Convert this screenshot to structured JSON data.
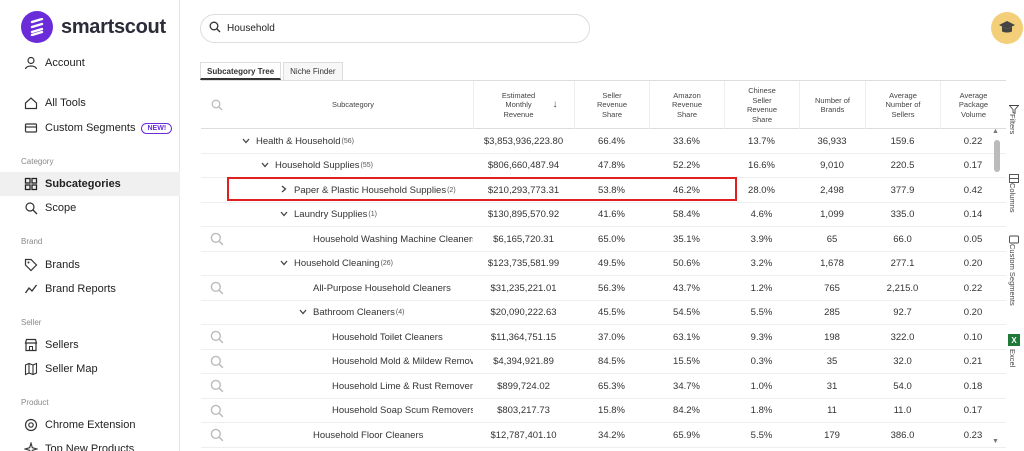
{
  "brand": {
    "name": "smartscout",
    "color": "#6a2bd9"
  },
  "sidebar": {
    "account": "Account",
    "all_tools": "All Tools",
    "custom_segments": "Custom Segments",
    "new_badge": "NEW!",
    "sections": {
      "category": "Category",
      "brand": "Brand",
      "seller": "Seller",
      "product": "Product"
    },
    "subcategories": "Subcategories",
    "scope": "Scope",
    "brands": "Brands",
    "brand_reports": "Brand Reports",
    "sellers": "Sellers",
    "seller_map": "Seller Map",
    "chrome_extension": "Chrome Extension",
    "top_new_products": "Top New Products"
  },
  "search": {
    "value": "Household"
  },
  "tabs": [
    "Subcategory Tree",
    "Niche Finder"
  ],
  "columns": {
    "subcategory": "Subcategory",
    "revenue": "Estimated Monthly Revenue",
    "seller_share": "Seller Revenue Share",
    "amazon_share": "Amazon Revenue Share",
    "chinese_share": "Chinese Seller Revenue Share",
    "brands": "Number of Brands",
    "avg_sellers": "Average Number of Sellers",
    "pkg_volume": "Average Package Volume"
  },
  "rows": [
    {
      "name": "Health & Household",
      "count": "(56)",
      "rev": "$3,853,936,223.80",
      "seller": "66.4%",
      "amazon": "33.6%",
      "chinese": "13.7%",
      "brands": "36,933",
      "sellers": "159.6",
      "vol": "0.22"
    },
    {
      "name": "Household Supplies",
      "count": "(55)",
      "rev": "$806,660,487.94",
      "seller": "47.8%",
      "amazon": "52.2%",
      "chinese": "16.6%",
      "brands": "9,010",
      "sellers": "220.5",
      "vol": "0.17"
    },
    {
      "name": "Paper & Plastic Household Supplies",
      "count": "(2)",
      "rev": "$210,293,773.31",
      "seller": "53.8%",
      "amazon": "46.2%",
      "chinese": "28.0%",
      "brands": "2,498",
      "sellers": "377.9",
      "vol": "0.42"
    },
    {
      "name": "Laundry Supplies",
      "count": "(1)",
      "rev": "$130,895,570.92",
      "seller": "41.6%",
      "amazon": "58.4%",
      "chinese": "4.6%",
      "brands": "1,099",
      "sellers": "335.0",
      "vol": "0.14"
    },
    {
      "name": "Household Washing Machine Cleaners",
      "count": "",
      "rev": "$6,165,720.31",
      "seller": "65.0%",
      "amazon": "35.1%",
      "chinese": "3.9%",
      "brands": "65",
      "sellers": "66.0",
      "vol": "0.05"
    },
    {
      "name": "Household Cleaning",
      "count": "(26)",
      "rev": "$123,735,581.99",
      "seller": "49.5%",
      "amazon": "50.6%",
      "chinese": "3.2%",
      "brands": "1,678",
      "sellers": "277.1",
      "vol": "0.20"
    },
    {
      "name": "All-Purpose Household Cleaners",
      "count": "",
      "rev": "$31,235,221.01",
      "seller": "56.3%",
      "amazon": "43.7%",
      "chinese": "1.2%",
      "brands": "765",
      "sellers": "2,215.0",
      "vol": "0.22"
    },
    {
      "name": "Bathroom Cleaners",
      "count": "(4)",
      "rev": "$20,090,222.63",
      "seller": "45.5%",
      "amazon": "54.5%",
      "chinese": "5.5%",
      "brands": "285",
      "sellers": "92.7",
      "vol": "0.20"
    },
    {
      "name": "Household Toilet Cleaners",
      "count": "",
      "rev": "$11,364,751.15",
      "seller": "37.0%",
      "amazon": "63.1%",
      "chinese": "9.3%",
      "brands": "198",
      "sellers": "322.0",
      "vol": "0.10"
    },
    {
      "name": "Household Mold & Mildew Removers",
      "count": "",
      "rev": "$4,394,921.89",
      "seller": "84.5%",
      "amazon": "15.5%",
      "chinese": "0.3%",
      "brands": "35",
      "sellers": "32.0",
      "vol": "0.21"
    },
    {
      "name": "Household Lime & Rust Removers",
      "count": "",
      "rev": "$899,724.02",
      "seller": "65.3%",
      "amazon": "34.7%",
      "chinese": "1.0%",
      "brands": "31",
      "sellers": "54.0",
      "vol": "0.18"
    },
    {
      "name": "Household Soap Scum Removers",
      "count": "",
      "rev": "$803,217.73",
      "seller": "15.8%",
      "amazon": "84.2%",
      "chinese": "1.8%",
      "brands": "11",
      "sellers": "11.0",
      "vol": "0.17"
    },
    {
      "name": "Household Floor Cleaners",
      "count": "",
      "rev": "$12,787,401.10",
      "seller": "34.2%",
      "amazon": "65.9%",
      "chinese": "5.5%",
      "brands": "179",
      "sellers": "386.0",
      "vol": "0.23"
    }
  ],
  "right_panel": {
    "filters": "Filters",
    "columns": "Columns",
    "custom_segments": "Custom Segments",
    "excel": "Excel"
  }
}
